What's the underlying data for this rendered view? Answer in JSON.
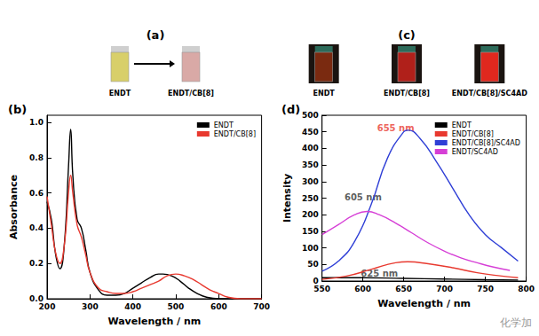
{
  "chart_data": [
    {
      "type": "line",
      "title": "(b)",
      "x_label": "Wavelength / nm",
      "y_label": "Absorbance",
      "xlim": [
        200,
        700
      ],
      "xticks": [
        200,
        300,
        400,
        500,
        600,
        700
      ],
      "ylim": [
        0,
        1.04
      ],
      "yticks": [
        {
          "value": 0,
          "label": "0.0"
        },
        0.2,
        0.4,
        0.6,
        0.8,
        {
          "value": 1,
          "label": "1.0"
        }
      ],
      "grid": false,
      "legend": "upper right",
      "series": [
        {
          "name": "ENDT",
          "color": "#000000",
          "x": [
            200,
            210,
            220,
            230,
            240,
            250,
            255,
            260,
            270,
            280,
            290,
            300,
            320,
            340,
            360,
            380,
            400,
            420,
            440,
            460,
            470,
            490,
            510,
            530,
            550,
            570,
            600,
            700
          ],
          "values": [
            0.55,
            0.45,
            0.25,
            0.17,
            0.3,
            0.75,
            0.96,
            0.7,
            0.45,
            0.4,
            0.28,
            0.15,
            0.05,
            0.02,
            0.02,
            0.03,
            0.06,
            0.09,
            0.12,
            0.14,
            0.14,
            0.13,
            0.1,
            0.06,
            0.03,
            0.01,
            0,
            0
          ]
        },
        {
          "name": "ENDT/CB[8]",
          "color": "#e8392f",
          "x": [
            200,
            210,
            220,
            230,
            240,
            250,
            255,
            260,
            270,
            280,
            290,
            300,
            320,
            340,
            360,
            380,
            400,
            420,
            440,
            460,
            480,
            500,
            520,
            540,
            560,
            580,
            600,
            620,
            650,
            700
          ],
          "values": [
            0.58,
            0.42,
            0.26,
            0.2,
            0.3,
            0.6,
            0.7,
            0.6,
            0.42,
            0.35,
            0.25,
            0.15,
            0.06,
            0.04,
            0.03,
            0.03,
            0.04,
            0.06,
            0.08,
            0.1,
            0.13,
            0.14,
            0.13,
            0.11,
            0.08,
            0.05,
            0.03,
            0.01,
            0,
            0
          ]
        }
      ]
    },
    {
      "type": "line",
      "title": "(d)",
      "x_label": "Wavelength / nm",
      "y_label": "Intensity",
      "xlim": [
        550,
        800
      ],
      "xticks": [
        550,
        600,
        650,
        700,
        750,
        800
      ],
      "ylim": [
        0,
        500
      ],
      "yticks": [
        0,
        50,
        100,
        150,
        200,
        250,
        300,
        350,
        400,
        450,
        500
      ],
      "grid": false,
      "legend": "upper right",
      "series": [
        {
          "name": "ENDT",
          "color": "#000000",
          "x": [
            550,
            600,
            650,
            700,
            750,
            790
          ],
          "values": [
            10,
            10,
            8,
            6,
            4,
            3
          ]
        },
        {
          "name": "ENDT/CB[8]",
          "color": "#e8392f",
          "x": [
            550,
            580,
            610,
            640,
            655,
            680,
            710,
            740,
            770,
            790
          ],
          "values": [
            5,
            15,
            35,
            55,
            58,
            52,
            40,
            25,
            15,
            10
          ]
        },
        {
          "name": "ENDT/CB[8]/SC4AD",
          "color": "#2f3fd6",
          "x": [
            550,
            570,
            590,
            610,
            630,
            650,
            655,
            670,
            690,
            710,
            730,
            750,
            770,
            790
          ],
          "values": [
            30,
            60,
            120,
            230,
            370,
            450,
            455,
            430,
            360,
            280,
            200,
            140,
            100,
            60
          ]
        },
        {
          "name": "ENDT/SC4AD",
          "color": "#d63fd6",
          "x": [
            550,
            570,
            590,
            605,
            620,
            640,
            660,
            680,
            700,
            720,
            740,
            760,
            780
          ],
          "values": [
            140,
            170,
            200,
            210,
            200,
            175,
            145,
            115,
            90,
            70,
            55,
            42,
            32
          ]
        }
      ],
      "annotations": [
        {
          "text": "655 nm",
          "x": 612,
          "y": 460,
          "color": "#e8392f"
        },
        {
          "text": "605 nm",
          "x": 572,
          "y": 252,
          "color": "#333333"
        },
        {
          "text": "625 nm",
          "x": 592,
          "y": 22,
          "color": "#333333"
        }
      ]
    }
  ],
  "photos": [
    {
      "title": "(a)",
      "arrow": true,
      "vials": [
        {
          "label": "ENDT",
          "color": "#d8cf6a"
        },
        {
          "label": "ENDT/CB[8]",
          "color": "#d9a9a6"
        }
      ]
    },
    {
      "title": "(c)",
      "arrow": false,
      "vials": [
        {
          "label": "ENDT",
          "color": "#7a2a10"
        },
        {
          "label": "ENDT/CB[8]",
          "color": "#b0201a"
        },
        {
          "label": "ENDT/CB[8]/SC4AD",
          "color": "#e0281e"
        }
      ]
    }
  ],
  "watermark": "化学加"
}
